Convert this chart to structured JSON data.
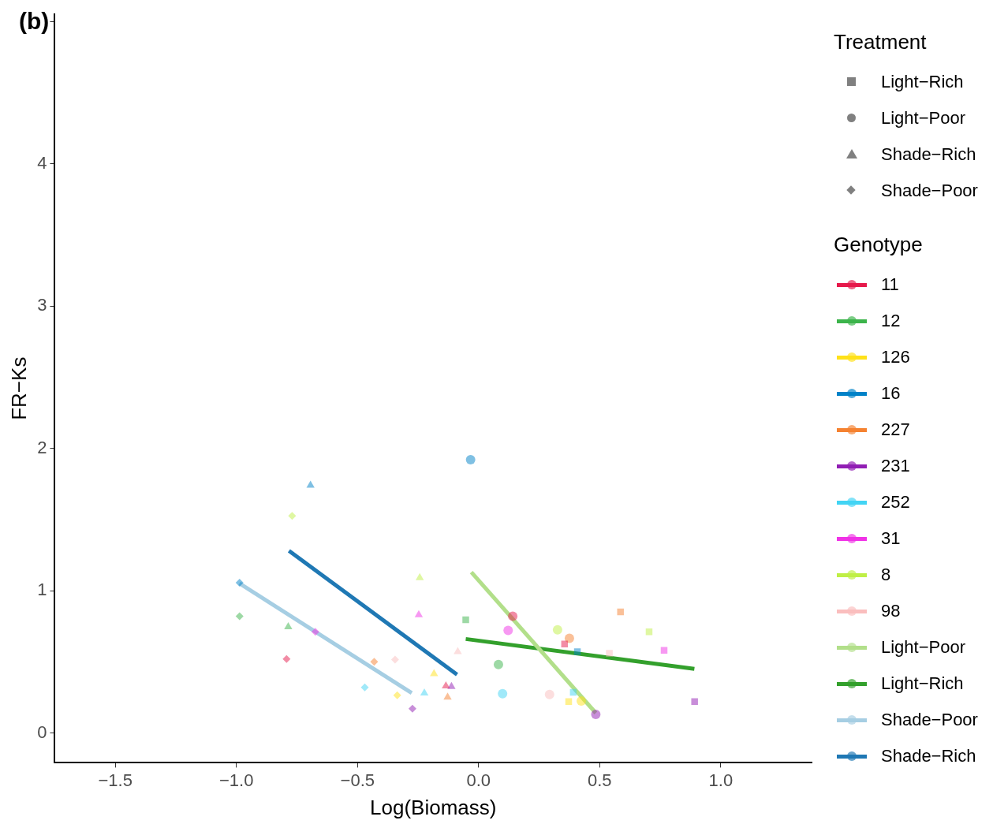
{
  "chart_data": {
    "type": "scatter",
    "title": "(b)",
    "xlabel": "Log(Biomass)",
    "ylabel": "FR−Ks",
    "legend_title": [
      "Treatment",
      "Genotype"
    ],
    "legend": "right",
    "grid": false,
    "xlim": [
      -1.75,
      1.375
    ],
    "ylim": [
      -0.21,
      5.05
    ],
    "xticks": [
      {
        "value": -1.5,
        "label": "−1.5"
      },
      {
        "value": -1,
        "label": "−1.0"
      },
      {
        "value": -0.5,
        "label": "−0.5"
      },
      {
        "value": 0,
        "label": "0.0"
      },
      0.5,
      {
        "value": 1,
        "label": "1.0"
      }
    ],
    "yticks": [
      0,
      1,
      2,
      3,
      4,
      {
        "value": 5,
        "label": null
      }
    ],
    "series": [
      {
        "name": "Light−Rich",
        "marker": "square",
        "color": "#808080"
      },
      {
        "name": "Light−Poor",
        "marker": "circle",
        "color": "#808080"
      },
      {
        "name": "Shade−Rich",
        "marker": "triangle",
        "color": "#808080"
      },
      {
        "name": "Shade−Poor",
        "marker": "diamond",
        "color": "#808080"
      },
      {
        "name": "11",
        "color": "#e6194b",
        "marker": [
          "square",
          "circle",
          "triangle",
          "diamond"
        ],
        "x": [
          0.355,
          0.141,
          -0.135,
          -0.793
        ],
        "values": [
          0.625,
          0.82,
          0.33,
          0.52
        ]
      },
      {
        "name": "12",
        "color": "#3cb44b",
        "marker": [
          "square",
          "circle",
          "triangle",
          "diamond"
        ],
        "x": [
          -0.053,
          0.082,
          -0.786,
          -0.987
        ],
        "values": [
          0.795,
          0.48,
          0.745,
          0.82
        ]
      },
      {
        "name": "126",
        "color": "#ffe119",
        "marker": [
          "square",
          "circle",
          "triangle",
          "diamond"
        ],
        "x": [
          0.372,
          0.424,
          -0.184,
          -0.336
        ],
        "values": [
          0.22,
          0.225,
          0.415,
          0.265
        ]
      },
      {
        "name": "16",
        "color": "#0082c8",
        "marker": [
          "square",
          "circle",
          "triangle",
          "diamond"
        ],
        "x": [
          0.408,
          -0.033,
          -0.694,
          -0.987
        ],
        "values": [
          0.57,
          1.92,
          1.74,
          1.055
        ]
      },
      {
        "name": "227",
        "color": "#f58231",
        "marker": [
          "square",
          "circle",
          "triangle",
          "diamond"
        ],
        "x": [
          0.586,
          0.375,
          -0.128,
          -0.431
        ],
        "values": [
          0.85,
          0.665,
          0.25,
          0.5
        ]
      },
      {
        "name": "231",
        "color": "#911eb4",
        "marker": [
          "square",
          "circle",
          "triangle",
          "diamond"
        ],
        "x": [
          0.892,
          0.484,
          -0.112,
          -0.273
        ],
        "values": [
          0.22,
          0.13,
          0.325,
          0.17
        ]
      },
      {
        "name": "252",
        "color": "#42d4f4",
        "marker": [
          "square",
          "circle",
          "triangle",
          "diamond"
        ],
        "x": [
          0.391,
          0.099,
          -0.224,
          -0.47
        ],
        "values": [
          0.285,
          0.275,
          0.28,
          0.32
        ]
      },
      {
        "name": "31",
        "color": "#f032e6",
        "marker": [
          "square",
          "circle",
          "triangle",
          "diamond"
        ],
        "x": [
          0.766,
          0.122,
          -0.247,
          -0.674
        ],
        "values": [
          0.58,
          0.72,
          0.83,
          0.71
        ]
      },
      {
        "name": "8",
        "color": "#bfef45",
        "marker": [
          "square",
          "circle",
          "triangle",
          "diamond"
        ],
        "x": [
          0.704,
          0.326,
          -0.243,
          -0.77
        ],
        "values": [
          0.71,
          0.725,
          1.09,
          1.525
        ]
      },
      {
        "name": "98",
        "color": "#fabebe",
        "marker": [
          "square",
          "circle",
          "triangle",
          "diamond"
        ],
        "x": [
          0.54,
          0.293,
          -0.086,
          -0.345
        ],
        "values": [
          0.56,
          0.27,
          0.57,
          0.515
        ]
      },
      {
        "name": "Light−Poor",
        "type": "line",
        "color": "#b2df8a",
        "x": [
          -0.03,
          0.484
        ],
        "values": [
          1.13,
          0.14
        ]
      },
      {
        "name": "Light−Rich",
        "type": "line",
        "color": "#33a02c",
        "x": [
          -0.053,
          0.891
        ],
        "values": [
          0.66,
          0.45
        ]
      },
      {
        "name": "Shade−Poor",
        "type": "line",
        "color": "#a6cee3",
        "x": [
          -0.987,
          -0.276
        ],
        "values": [
          1.05,
          0.28
        ]
      },
      {
        "name": "Shade−Rich",
        "type": "line",
        "color": "#1f78b4",
        "x": [
          -0.783,
          -0.089
        ],
        "values": [
          1.28,
          0.41
        ]
      }
    ]
  }
}
